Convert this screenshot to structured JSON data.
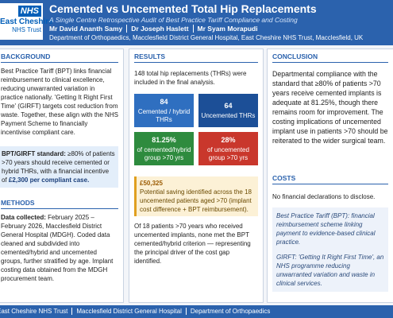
{
  "header": {
    "logo_nhs": "NHS",
    "logo_org": "East Cheshire",
    "logo_sub": "NHS Trust",
    "title": "Cemented vs Uncemented Total Hip Replacements",
    "subtitle": "A Single Centre Retrospective Audit of Best Practice Tariff Compliance and Costing",
    "authors": [
      "Mr David Ananth Samy",
      "Dr Joseph Haslett",
      "Mr Syam Morapudi"
    ],
    "affiliation": "Department of Orthopaedics, Macclesfield District General Hospital, East Cheshire NHS Trust, Macclesfield, UK"
  },
  "background": {
    "heading": "BACKGROUND",
    "text": "Best Practice Tariff (BPT) links financial reimbursement to clinical excellence, reducing unwarranted variation in practice nationally. 'Getting It Right First Time' (GIRFT) targets cost reduction from waste. Together, these align with the NHS Payment Scheme to financially incentivise compliant care.",
    "standard": {
      "label": "BPT/GIRFT standard:",
      "text": "≥80% of patients >70 years should receive cemented or hybrid THRs, with a financial incentive of",
      "emphasis": "£2,300 per compliant case."
    }
  },
  "methods": {
    "heading": "METHODS",
    "label": "Data collected:",
    "text": "February 2025 – February 2026, Macclesfield District General Hospital (MDGH). Coded data cleaned and subdivided into cemented/hybrid and uncemented groups, further stratified by age. Implant costing data obtained from the MDGH procurement team."
  },
  "results": {
    "heading": "RESULTS",
    "intro": "148 total hip replacements (THRs) were included in the final analysis.",
    "stats": [
      {
        "value": "84",
        "label": "Cemented / hybrid THRs"
      },
      {
        "value": "64",
        "label": "Uncemented THRs"
      },
      {
        "value": "81.25%",
        "label": "of cemented/hybrid group >70 yrs"
      },
      {
        "value": "28%",
        "label": "of uncemented group >70 yrs"
      }
    ],
    "saving": {
      "amount": "£50,325",
      "text": "Potential saving identified across the 18 uncemented patients aged >70 (implant cost difference + BPT reimbursement)."
    },
    "note": "Of 18 patients >70 years who received uncemented implants, none met the BPT cemented/hybrid criterion — representing the principal driver of the cost gap identified."
  },
  "conclusion": {
    "heading": "CONCLUSION",
    "text": "Departmental compliance with the standard that ≥80% of patients >70 years receive cemented implants is adequate at 81.25%, though there remains room for improvement. The costing implications of uncemented implant use in patients >70 should be reiterated to the wider surgical team."
  },
  "costs": {
    "heading": "COSTS",
    "text": "No financial declarations to disclose.",
    "glossary": [
      "Best Practice Tariff (BPT): financial reimbursement scheme linking payment to evidence-based clinical practice.",
      "GIRFT: 'Getting It Right First Time', an NHS programme reducing unwarranted variation and waste in clinical services."
    ]
  },
  "footer": {
    "items": [
      "East Cheshire NHS Trust",
      "Macclesfield District General Hospital",
      "Department of Orthopaedics"
    ]
  }
}
